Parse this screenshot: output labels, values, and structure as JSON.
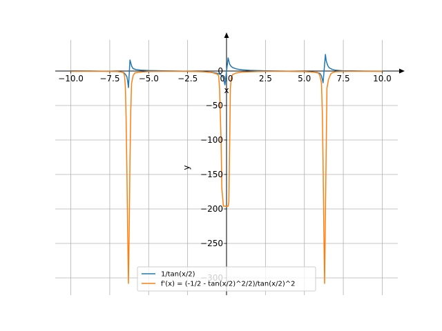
{
  "chart_data": {
    "type": "line",
    "xlabel": "x",
    "ylabel": "y",
    "xlim": [
      -11.0,
      11.0
    ],
    "ylim": [
      -325,
      45
    ],
    "grid": true,
    "legend_position": "bottom-center",
    "xticks": [
      -10.0,
      -7.5,
      -5.0,
      -2.5,
      0.0,
      2.5,
      5.0,
      7.5,
      10.0
    ],
    "xtick_labels": [
      "−10.0",
      "−7.5",
      "−5.0",
      "−2.5",
      "0.0",
      "2.5",
      "5.0",
      "7.5",
      "10.0"
    ],
    "yticks": [
      0,
      -50,
      -100,
      -150,
      -200,
      -250,
      -300
    ],
    "ytick_labels": [
      "0",
      "−50",
      "−100",
      "−150",
      "−200",
      "−250",
      "−300"
    ],
    "series": [
      {
        "name": "1/tan(x/2)",
        "color": "#1f77b4",
        "points": [
          [
            -10.0,
            0.3
          ],
          [
            -9.0,
            0.11
          ],
          [
            -8.0,
            -0.15
          ],
          [
            -7.5,
            -0.35
          ],
          [
            -7.0,
            -0.78
          ],
          [
            -6.8,
            -1.25
          ],
          [
            -6.6,
            -2.3
          ],
          [
            -6.5,
            -4.6
          ],
          [
            -6.4,
            -8.2
          ],
          [
            -6.35,
            -14
          ],
          [
            -6.3,
            -24.0
          ],
          [
            -6.2,
            16.0
          ],
          [
            -6.1,
            7.5
          ],
          [
            -6.0,
            3.5
          ],
          [
            -5.8,
            2.0
          ],
          [
            -5.5,
            1.3
          ],
          [
            -5.0,
            0.67
          ],
          [
            -4.0,
            0.18
          ],
          [
            -3.0,
            -0.07
          ],
          [
            -2.0,
            -0.64
          ],
          [
            -1.5,
            -1.05
          ],
          [
            -1.0,
            -1.83
          ],
          [
            -0.8,
            -2.4
          ],
          [
            -0.6,
            -3.3
          ],
          [
            -0.4,
            -5.0
          ],
          [
            -0.3,
            -6.6
          ],
          [
            -0.2,
            -10.0
          ],
          [
            -0.1,
            -20.0
          ],
          [
            0.1,
            19.0
          ],
          [
            0.2,
            10.0
          ],
          [
            0.3,
            6.6
          ],
          [
            0.4,
            5.0
          ],
          [
            0.6,
            3.3
          ],
          [
            0.8,
            2.4
          ],
          [
            1.0,
            1.83
          ],
          [
            1.5,
            1.05
          ],
          [
            2.0,
            0.64
          ],
          [
            3.0,
            0.07
          ],
          [
            4.0,
            -0.18
          ],
          [
            5.0,
            -0.67
          ],
          [
            5.5,
            -1.3
          ],
          [
            5.8,
            -2.0
          ],
          [
            6.0,
            -3.5
          ],
          [
            6.1,
            -7.0
          ],
          [
            6.2,
            -17.0
          ],
          [
            6.35,
            24.0
          ],
          [
            6.4,
            15
          ],
          [
            6.5,
            8.0
          ],
          [
            6.6,
            4.5
          ],
          [
            6.8,
            2.3
          ],
          [
            7.0,
            1.25
          ],
          [
            7.5,
            0.35
          ],
          [
            8.0,
            0.15
          ],
          [
            9.0,
            -0.11
          ],
          [
            10.0,
            -0.3
          ]
        ]
      },
      {
        "name": "f'(x) = (-1/2 - tan(x/2)^2/2)/tan(x/2)^2",
        "color": "#ff7f0e",
        "points": [
          [
            -10.0,
            -0.6
          ],
          [
            -9.0,
            -0.5
          ],
          [
            -8.0,
            -0.52
          ],
          [
            -7.5,
            -0.6
          ],
          [
            -7.0,
            -0.8
          ],
          [
            -6.9,
            -1.0
          ],
          [
            -6.8,
            -1.3
          ],
          [
            -6.7,
            -1.8
          ],
          [
            -6.6,
            -3.0
          ],
          [
            -6.55,
            -7.0
          ],
          [
            -6.5,
            -22.0
          ],
          [
            -6.45,
            -70.0
          ],
          [
            -6.4,
            -140.0
          ],
          [
            -6.35,
            -230.0
          ],
          [
            -6.3,
            -308.0
          ],
          [
            -6.25,
            -230.0
          ],
          [
            -6.2,
            -130.0
          ],
          [
            -6.15,
            -60.0
          ],
          [
            -6.1,
            -18.0
          ],
          [
            -6.0,
            -7.0
          ],
          [
            -5.9,
            -3.0
          ],
          [
            -5.7,
            -2.0
          ],
          [
            -5.5,
            -1.5
          ],
          [
            -5.0,
            -0.8
          ],
          [
            -4.0,
            -0.5
          ],
          [
            -3.0,
            -0.5
          ],
          [
            -2.0,
            -0.7
          ],
          [
            -1.5,
            -1.05
          ],
          [
            -1.0,
            -2.0
          ],
          [
            -0.8,
            -3.0
          ],
          [
            -0.6,
            -4.5
          ],
          [
            -0.5,
            -7.0
          ],
          [
            -0.45,
            -25.0
          ],
          [
            -0.35,
            -100.0
          ],
          [
            -0.3,
            -170.0
          ],
          [
            -0.2,
            -196.0
          ],
          [
            -0.1,
            -196.0
          ],
          [
            0.1,
            -196.0
          ],
          [
            0.15,
            -190.0
          ],
          [
            0.2,
            -110.0
          ],
          [
            0.25,
            -25.0
          ],
          [
            0.3,
            -10.0
          ],
          [
            0.4,
            -5.0
          ],
          [
            0.6,
            -3.0
          ],
          [
            1.0,
            -1.5
          ],
          [
            2.0,
            -0.7
          ],
          [
            3.0,
            -0.5
          ],
          [
            4.0,
            -0.5
          ],
          [
            5.0,
            -0.8
          ],
          [
            5.5,
            -1.5
          ],
          [
            5.7,
            -2.0
          ],
          [
            5.9,
            -3.0
          ],
          [
            6.0,
            -7.0
          ],
          [
            6.1,
            -18.0
          ],
          [
            6.15,
            -60.0
          ],
          [
            6.2,
            -130.0
          ],
          [
            6.25,
            -230.0
          ],
          [
            6.3,
            -308.0
          ],
          [
            6.45,
            -25.0
          ],
          [
            6.55,
            -12.0
          ],
          [
            6.7,
            -4.0
          ],
          [
            6.8,
            -2.5
          ],
          [
            7.0,
            -1.0
          ],
          [
            7.5,
            -0.6
          ],
          [
            8.0,
            -0.52
          ],
          [
            9.0,
            -0.5
          ],
          [
            10.0,
            -0.6
          ]
        ]
      }
    ]
  }
}
